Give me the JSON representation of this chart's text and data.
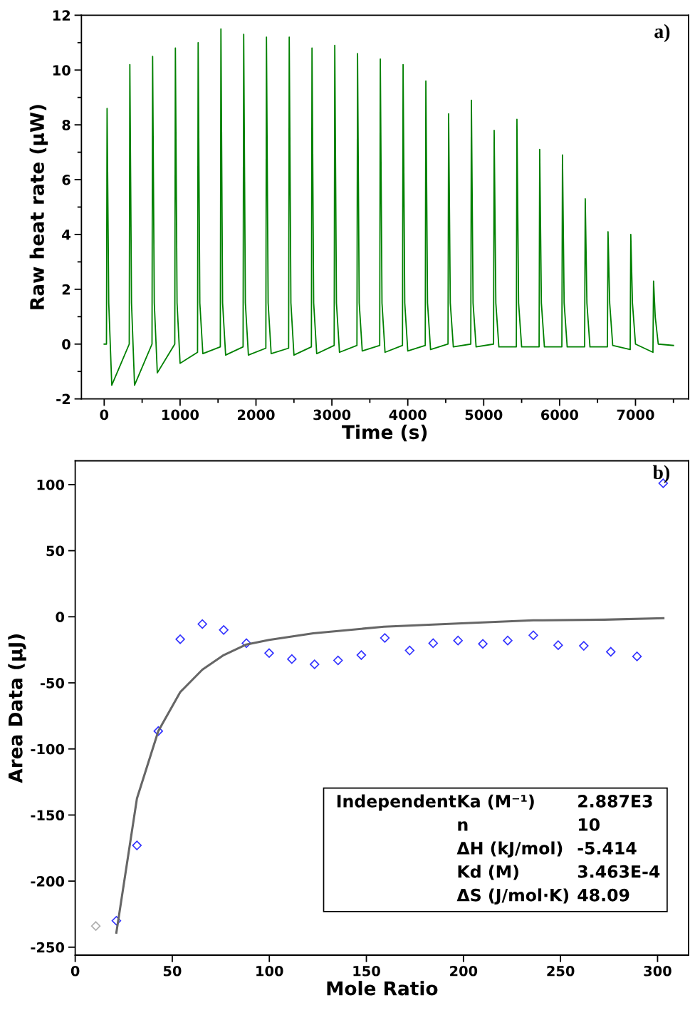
{
  "chart_data": [
    {
      "type": "line",
      "xlabel": "Time (s)",
      "ylabel": "Raw heat rate (μW)",
      "annotations": [
        "a)"
      ],
      "xlim": [
        -300,
        7700
      ],
      "ylim": [
        -2,
        12
      ],
      "xticks": [
        0,
        1000,
        2000,
        3000,
        4000,
        5000,
        6000,
        7000
      ],
      "yticks": [
        -2,
        0,
        2,
        4,
        6,
        8,
        10,
        12
      ],
      "grid": false,
      "legend": false,
      "marker": "none",
      "line_style": "solid",
      "series": [
        {
          "color": "#008000",
          "x": [
            0,
            30,
            38,
            60,
            100,
            330,
            338,
            360,
            400,
            630,
            638,
            660,
            700,
            930,
            938,
            960,
            1000,
            1230,
            1238,
            1260,
            1300,
            1530,
            1538,
            1560,
            1600,
            1830,
            1838,
            1860,
            1900,
            2130,
            2138,
            2160,
            2200,
            2430,
            2438,
            2460,
            2500,
            2730,
            2738,
            2760,
            2800,
            3030,
            3038,
            3060,
            3100,
            3330,
            3338,
            3360,
            3400,
            3630,
            3638,
            3660,
            3700,
            3930,
            3938,
            3960,
            4000,
            4230,
            4238,
            4260,
            4300,
            4530,
            4538,
            4560,
            4600,
            4830,
            4838,
            4860,
            4900,
            5130,
            5138,
            5160,
            5200,
            5430,
            5438,
            5460,
            5500,
            5730,
            5738,
            5760,
            5800,
            6030,
            6038,
            6060,
            6100,
            6330,
            6338,
            6360,
            6400,
            6630,
            6638,
            6660,
            6700,
            6930,
            6938,
            6960,
            7000,
            7230,
            7238,
            7260,
            7300,
            7500
          ],
          "values": [
            0,
            0,
            8.6,
            1.5,
            -1.5,
            0,
            10.2,
            1.5,
            -1.5,
            0,
            10.5,
            1.5,
            -1.05,
            0,
            10.8,
            1.5,
            -0.7,
            -0.3,
            11.0,
            1.5,
            -0.35,
            -0.1,
            11.5,
            1.5,
            -0.4,
            -0.1,
            11.3,
            1.5,
            -0.4,
            -0.15,
            11.2,
            1.5,
            -0.35,
            -0.15,
            11.2,
            1.5,
            -0.4,
            -0.1,
            10.8,
            1.5,
            -0.35,
            -0.05,
            10.9,
            1.5,
            -0.3,
            -0.05,
            10.6,
            1.5,
            -0.25,
            -0.05,
            10.4,
            1.5,
            -0.3,
            -0.05,
            10.2,
            1.5,
            -0.25,
            -0.05,
            9.6,
            1.5,
            -0.2,
            0,
            8.4,
            1.5,
            -0.1,
            0,
            8.9,
            1.5,
            -0.1,
            0,
            7.8,
            1.5,
            -0.1,
            -0.1,
            8.2,
            1.5,
            -0.1,
            -0.1,
            7.1,
            1.5,
            -0.1,
            -0.1,
            6.9,
            1.5,
            -0.1,
            -0.1,
            5.3,
            1.5,
            -0.1,
            -0.1,
            4.1,
            1.5,
            -0.05,
            -0.2,
            4.0,
            1.5,
            0,
            -0.3,
            2.3,
            1.0,
            0,
            -0.05
          ]
        }
      ]
    },
    {
      "type": "scatter",
      "xlabel": "Mole Ratio",
      "ylabel": "Area Data (μJ)",
      "annotations": [
        "b)",
        "Independent",
        "Ka (M⁻¹)",
        "2.887E3",
        "n",
        "10",
        "ΔH (kJ/mol)",
        "-5.414",
        "Kd (M)",
        "3.463E-4",
        "ΔS (J/mol·K)",
        "48.09"
      ],
      "xlim": [
        0,
        316
      ],
      "ylim": [
        -256,
        118
      ],
      "xticks": [
        0,
        50,
        100,
        150,
        200,
        250,
        300
      ],
      "yticks": [
        -250,
        -200,
        -150,
        -100,
        -50,
        0,
        50,
        100
      ],
      "grid": false,
      "legend": false,
      "series": [
        {
          "type": "scatter",
          "marker": "diamond",
          "x": [
            10.6,
            21.2,
            31.8,
            42.8,
            54.1,
            65.5,
            76.5,
            88.2,
            99.9,
            111.6,
            123.3,
            135.4,
            147.4,
            159.5,
            172.3,
            184.4,
            197.2,
            210,
            222.8,
            236,
            248.8,
            262,
            275.9,
            289.4,
            302.9
          ],
          "values": [
            -234,
            -230,
            -173,
            -86.5,
            -17,
            -5.5,
            -10,
            -20,
            -27.5,
            -32,
            -36,
            -33,
            -29,
            -16,
            -25.5,
            -20,
            -18,
            -20.5,
            -18,
            -14,
            -21.5,
            -22,
            -26.5,
            -30,
            101
          ],
          "colors": [
            "#b0b0b0",
            "#3333ff",
            "#3333ff",
            "#3333ff",
            "#3333ff",
            "#3333ff",
            "#3333ff",
            "#3333ff",
            "#3333ff",
            "#3333ff",
            "#3333ff",
            "#3333ff",
            "#3333ff",
            "#3333ff",
            "#3333ff",
            "#3333ff",
            "#3333ff",
            "#3333ff",
            "#3333ff",
            "#3333ff",
            "#3333ff",
            "#3333ff",
            "#3333ff",
            "#3333ff",
            "#3333ff"
          ]
        },
        {
          "type": "line",
          "color": "#666666",
          "line_style": "solid",
          "x": [
            21.2,
            31.8,
            42.8,
            54.1,
            65.5,
            76.5,
            88.2,
            99.9,
            122.6,
            159,
            199,
            236,
            272.6,
            303
          ],
          "values": [
            -239,
            -137.5,
            -86.5,
            -57,
            -40,
            -29,
            -21,
            -17.5,
            -12.5,
            -7.5,
            -5,
            -2.7,
            -2.2,
            -1.1
          ]
        }
      ]
    }
  ]
}
